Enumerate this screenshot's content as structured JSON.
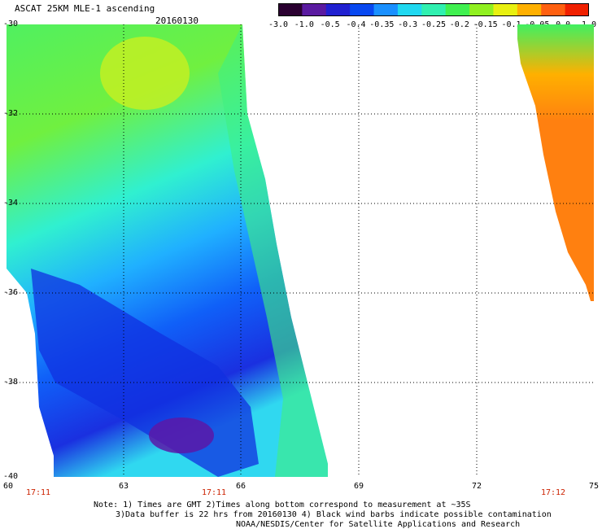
{
  "header": {
    "title": "ASCAT 25KM MLE-1 ascending",
    "date": "20160130"
  },
  "colorbar": {
    "labels": [
      "-3.0",
      "-1.0",
      "-0.5",
      "-0.4",
      "-0.35",
      "-0.3",
      "-0.25",
      "-0.2",
      "-0.15",
      "-0.1",
      "-0.05",
      "0.0",
      "1.0"
    ],
    "colors": [
      "#2a0030",
      "#5a1aa0",
      "#2020d0",
      "#0848f0",
      "#1a90ff",
      "#20d8f0",
      "#30f0b0",
      "#40f050",
      "#90f020",
      "#e8f010",
      "#ffb000",
      "#ff6010",
      "#f02000"
    ]
  },
  "axes": {
    "lon_labels": [
      "60",
      "63",
      "66",
      "69",
      "72",
      "75"
    ],
    "lat_labels": [
      "-30",
      "-32",
      "-34",
      "-36",
      "-38",
      "-40"
    ],
    "time_labels": [
      "17:11",
      "17:11",
      "17:12"
    ]
  },
  "notes": {
    "line1": "Note: 1) Times are GMT 2)Times along bottom correspond to measurement at ~35S",
    "line2": "3)Data buffer is 22 hrs from 20160130 4) Black wind barbs indicate possible contamination",
    "line3": "NOAA/NESDIS/Center for Satellite Applications and Research"
  }
}
